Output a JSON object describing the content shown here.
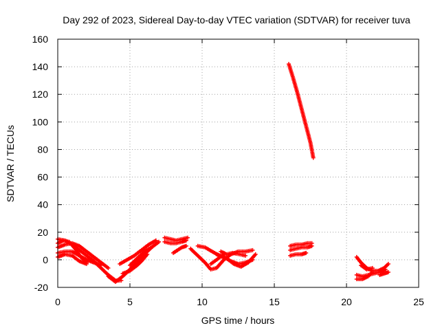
{
  "chart_data": {
    "type": "scatter",
    "title": "Day 292 of 2023, Sidereal Day-to-day VTEC variation (SDTVAR) for receiver tuva",
    "xlabel": "GPS time / hours",
    "ylabel": "SDTVAR / TECUs",
    "xlim": [
      0,
      25
    ],
    "ylim": [
      -20,
      160
    ],
    "xticks": [
      "0",
      "5",
      "10",
      "15",
      "20",
      "25"
    ],
    "yticks": [
      "-20",
      "0",
      "20",
      "40",
      "60",
      "80",
      "100",
      "120",
      "140",
      "160"
    ],
    "grid": true,
    "marker": "+",
    "color": "#ff0000",
    "tracks": [
      [
        [
          0.0,
          15
        ],
        [
          0.5,
          14
        ],
        [
          1.0,
          11
        ],
        [
          1.5,
          7
        ],
        [
          2.0,
          3
        ],
        [
          2.5,
          -1
        ],
        [
          3.0,
          -6
        ],
        [
          3.5,
          -11
        ],
        [
          4.0,
          -15
        ],
        [
          4.4,
          -15
        ]
      ],
      [
        [
          0.0,
          9
        ],
        [
          0.5,
          11
        ],
        [
          1.0,
          12
        ],
        [
          1.5,
          10
        ],
        [
          2.0,
          6
        ],
        [
          2.5,
          2
        ],
        [
          3.0,
          -2
        ],
        [
          3.5,
          -6
        ]
      ],
      [
        [
          0.0,
          5
        ],
        [
          0.5,
          6
        ],
        [
          1.0,
          6
        ],
        [
          1.5,
          3
        ],
        [
          2.0,
          0
        ],
        [
          2.5,
          -2
        ],
        [
          3.0,
          -4
        ]
      ],
      [
        [
          0.0,
          2
        ],
        [
          0.5,
          4
        ],
        [
          1.0,
          3
        ],
        [
          1.5,
          -1
        ],
        [
          2.0,
          -3
        ]
      ],
      [
        [
          0.0,
          12
        ],
        [
          0.4,
          14
        ],
        [
          0.8,
          13
        ],
        [
          1.2,
          8
        ],
        [
          1.6,
          2
        ],
        [
          2.0,
          -2
        ]
      ],
      [
        [
          3.5,
          -12
        ],
        [
          4.0,
          -16
        ],
        [
          4.5,
          -12
        ],
        [
          5.0,
          -7
        ],
        [
          5.5,
          -2
        ],
        [
          6.0,
          4
        ],
        [
          6.5,
          9
        ],
        [
          7.0,
          13
        ]
      ],
      [
        [
          4.3,
          -3
        ],
        [
          4.8,
          0
        ],
        [
          5.3,
          3
        ],
        [
          5.8,
          7
        ],
        [
          6.3,
          11
        ],
        [
          6.8,
          14
        ]
      ],
      [
        [
          4.5,
          -10
        ],
        [
          5.0,
          -8
        ],
        [
          5.5,
          -4
        ],
        [
          5.8,
          -1
        ],
        [
          6.2,
          4
        ]
      ],
      [
        [
          5.0,
          -4
        ],
        [
          5.5,
          1
        ],
        [
          6.0,
          6
        ],
        [
          6.5,
          9
        ]
      ],
      [
        [
          7.4,
          16
        ],
        [
          7.8,
          15
        ],
        [
          8.2,
          14
        ],
        [
          8.6,
          15
        ],
        [
          9.0,
          16
        ]
      ],
      [
        [
          7.4,
          13
        ],
        [
          7.8,
          12
        ],
        [
          8.2,
          12
        ],
        [
          8.6,
          13
        ],
        [
          8.9,
          14
        ]
      ],
      [
        [
          8.0,
          5
        ],
        [
          8.3,
          7
        ],
        [
          8.6,
          9
        ],
        [
          8.9,
          10
        ]
      ],
      [
        [
          9.2,
          8
        ],
        [
          9.7,
          3
        ],
        [
          10.2,
          -2
        ],
        [
          10.6,
          -7
        ],
        [
          11.0,
          -6
        ],
        [
          11.5,
          0
        ],
        [
          12.0,
          4
        ],
        [
          12.5,
          6
        ],
        [
          13.0,
          6
        ],
        [
          13.5,
          7
        ]
      ],
      [
        [
          9.7,
          10
        ],
        [
          10.2,
          9
        ],
        [
          10.7,
          6
        ],
        [
          11.2,
          3
        ],
        [
          11.7,
          1
        ],
        [
          12.2,
          -3
        ],
        [
          12.7,
          -5
        ],
        [
          13.2,
          -2
        ],
        [
          13.7,
          4
        ]
      ],
      [
        [
          11.0,
          4
        ],
        [
          11.5,
          2
        ],
        [
          12.0,
          -1
        ],
        [
          12.5,
          -3
        ],
        [
          13.0,
          -2
        ],
        [
          13.5,
          0
        ]
      ],
      [
        [
          10.6,
          -3
        ],
        [
          11.0,
          0
        ],
        [
          11.5,
          4
        ]
      ],
      [
        [
          11.3,
          6
        ],
        [
          11.7,
          4
        ],
        [
          12.1,
          5
        ],
        [
          12.6,
          4
        ],
        [
          13.0,
          3
        ]
      ],
      [
        [
          16.0,
          142
        ],
        [
          16.3,
          132
        ],
        [
          16.6,
          121
        ],
        [
          16.9,
          109
        ],
        [
          17.2,
          97
        ],
        [
          17.5,
          85
        ],
        [
          17.7,
          74
        ]
      ],
      [
        [
          16.1,
          10
        ],
        [
          16.5,
          11
        ],
        [
          16.9,
          11
        ],
        [
          17.3,
          12
        ],
        [
          17.6,
          12
        ]
      ],
      [
        [
          16.1,
          7
        ],
        [
          16.5,
          8
        ],
        [
          16.9,
          9
        ],
        [
          17.3,
          9
        ],
        [
          17.6,
          10
        ]
      ],
      [
        [
          16.1,
          3
        ],
        [
          16.5,
          4
        ],
        [
          16.9,
          4
        ],
        [
          17.2,
          5
        ]
      ],
      [
        [
          20.7,
          2
        ],
        [
          21.0,
          -2
        ],
        [
          21.4,
          -6
        ],
        [
          21.8,
          -8
        ],
        [
          22.2,
          -8
        ],
        [
          22.6,
          -6
        ],
        [
          22.9,
          -3
        ]
      ],
      [
        [
          20.7,
          -11
        ],
        [
          21.1,
          -12
        ],
        [
          21.5,
          -11
        ],
        [
          21.9,
          -10
        ],
        [
          22.3,
          -9
        ],
        [
          22.7,
          -7
        ]
      ],
      [
        [
          20.7,
          -14
        ],
        [
          21.1,
          -14
        ],
        [
          21.5,
          -12
        ],
        [
          21.8,
          -9
        ]
      ],
      [
        [
          22.3,
          -11
        ],
        [
          22.6,
          -10
        ],
        [
          22.9,
          -9
        ]
      ],
      [
        [
          21.0,
          -4
        ],
        [
          21.4,
          -7
        ],
        [
          21.8,
          -6
        ]
      ]
    ]
  }
}
